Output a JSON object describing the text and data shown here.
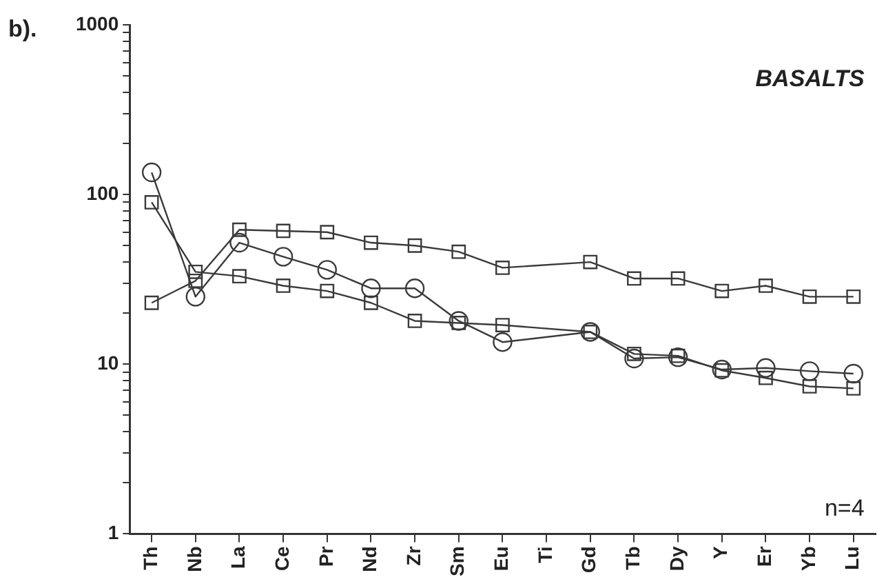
{
  "chart_data": {
    "type": "line",
    "log": true,
    "grid": false,
    "legend": false,
    "line_style": "solid",
    "categories": [
      "Th",
      "Nb",
      "La",
      "Ce",
      "Pr",
      "Nd",
      "Zr",
      "Sm",
      "Eu",
      "Ti",
      "Gd",
      "Tb",
      "Dy",
      "Y",
      "Er",
      "Yb",
      "Lu"
    ],
    "ylim": [
      1,
      1000
    ],
    "yticks": [
      1,
      {
        "value": 2,
        "label": null
      },
      {
        "value": 3,
        "label": null
      },
      {
        "value": 4,
        "label": null
      },
      {
        "value": 5,
        "label": null
      },
      {
        "value": 6,
        "label": null
      },
      {
        "value": 7,
        "label": null
      },
      {
        "value": 8,
        "label": null
      },
      {
        "value": 9,
        "label": null
      },
      10,
      {
        "value": 20,
        "label": null
      },
      {
        "value": 30,
        "label": null
      },
      {
        "value": 40,
        "label": null
      },
      {
        "value": 50,
        "label": null
      },
      {
        "value": 60,
        "label": null
      },
      {
        "value": 70,
        "label": null
      },
      {
        "value": 80,
        "label": null
      },
      {
        "value": 90,
        "label": null
      },
      100,
      {
        "value": 200,
        "label": null
      },
      {
        "value": 300,
        "label": null
      },
      {
        "value": 400,
        "label": null
      },
      {
        "value": 500,
        "label": null
      },
      {
        "value": 600,
        "label": null
      },
      {
        "value": 700,
        "label": null
      },
      {
        "value": 800,
        "label": null
      },
      {
        "value": 900,
        "label": null
      },
      1000
    ],
    "series": [
      {
        "color": "#3a3a3a",
        "marker": "square",
        "values": [
          23,
          31,
          62,
          61,
          60,
          52,
          50,
          46,
          37,
          null,
          40,
          32,
          32,
          27,
          29,
          25,
          25
        ]
      },
      {
        "color": "#3a3a3a",
        "marker": "circle",
        "values": [
          135,
          25,
          52,
          43,
          36,
          28,
          28,
          18,
          13.5,
          null,
          15.5,
          10.8,
          11,
          9.3,
          9.5,
          9.1,
          8.8
        ]
      },
      {
        "color": "#3a3a3a",
        "marker": "square",
        "values": [
          90,
          35,
          33,
          29,
          27,
          23,
          18,
          17.5,
          17,
          null,
          15.5,
          11.5,
          11.2,
          9.2,
          8.3,
          7.4,
          7.2
        ]
      }
    ],
    "annotations": [
      "b).",
      "BASALTS",
      "n=4"
    ]
  }
}
